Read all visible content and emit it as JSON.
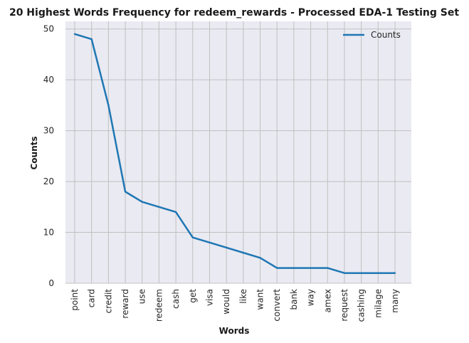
{
  "chart_data": {
    "type": "line",
    "title": "20 Highest Words Frequency for redeem_rewards - Processed EDA-1 Testing Set",
    "xlabel": "Words",
    "ylabel": "Counts",
    "categories": [
      "point",
      "card",
      "credit",
      "reward",
      "use",
      "redeem",
      "cash",
      "get",
      "visa",
      "would",
      "like",
      "want",
      "convert",
      "bank",
      "way",
      "amex",
      "request",
      "cashing",
      "milage",
      "many"
    ],
    "series": [
      {
        "name": "Counts",
        "color": "#1f77b4",
        "values": [
          49,
          48,
          35,
          18,
          16,
          15,
          14,
          9,
          8,
          7,
          6,
          5,
          3,
          3,
          3,
          3,
          2,
          2,
          2,
          2
        ]
      }
    ],
    "ylim": [
      0,
      51.5
    ],
    "yticks": [
      0,
      10,
      20,
      30,
      40,
      50
    ],
    "grid": true,
    "legend_position": "top-right",
    "colors": {
      "plot_background": "#eaeaf2",
      "grid": "#c0c0c0",
      "line": "#1f77b4"
    }
  }
}
